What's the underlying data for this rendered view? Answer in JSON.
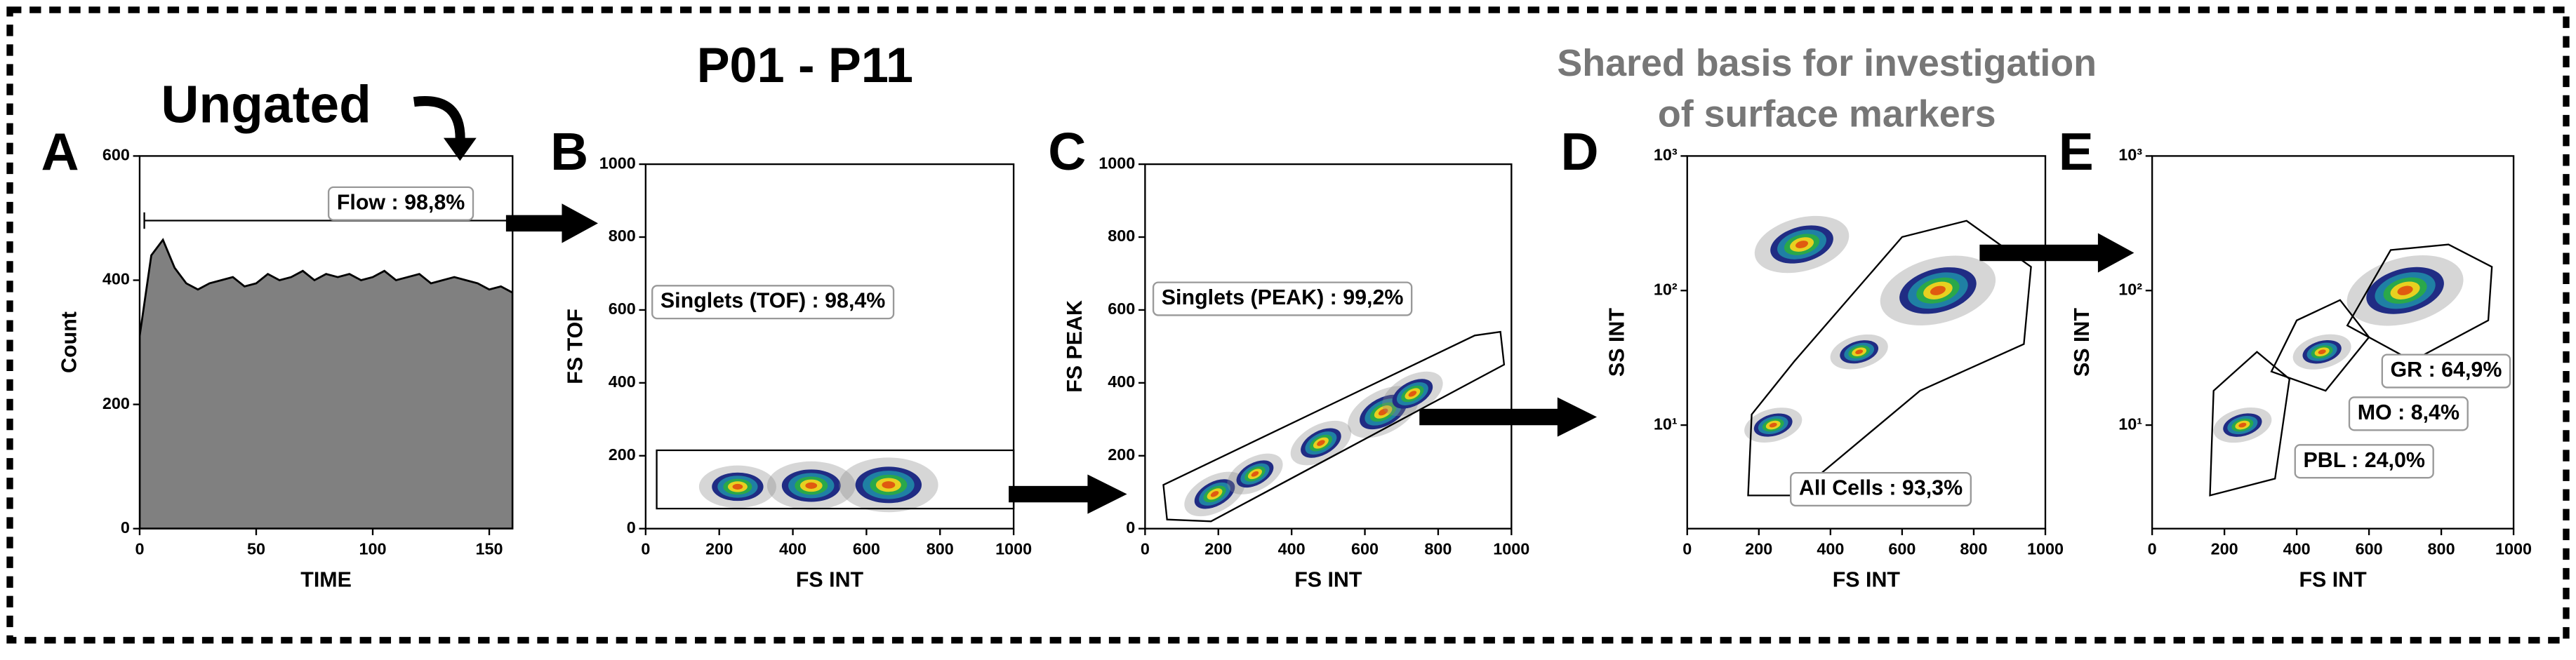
{
  "header": {
    "title": "P01 - P11",
    "ungated": "Ungated",
    "shared": [
      "Shared basis for investigation",
      "of surface markers"
    ]
  },
  "chart_data": [
    {
      "type": "area",
      "letter": "A",
      "xlabel": "TIME",
      "ylabel": "Count",
      "color": "#808080",
      "x": [
        0,
        5,
        10,
        15,
        20,
        25,
        30,
        35,
        40,
        45,
        50,
        55,
        60,
        65,
        70,
        75,
        80,
        85,
        90,
        95,
        100,
        105,
        110,
        115,
        120,
        125,
        130,
        135,
        140,
        145,
        150,
        155,
        160
      ],
      "values": [
        310,
        440,
        465,
        420,
        395,
        385,
        395,
        400,
        405,
        390,
        395,
        410,
        400,
        405,
        415,
        400,
        410,
        405,
        410,
        400,
        405,
        415,
        400,
        405,
        410,
        395,
        400,
        405,
        400,
        395,
        385,
        390,
        380
      ],
      "xlim": [
        0,
        160
      ],
      "xticks": [
        0,
        50,
        100,
        150
      ],
      "ylim": [
        0,
        600
      ],
      "yticks": [
        0,
        200,
        400,
        600
      ],
      "gates": [
        {
          "label": "Flow : 98,8%",
          "x": [
            2,
            160
          ],
          "y": [
            496,
            496
          ]
        }
      ]
    },
    {
      "type": "scatter",
      "letter": "B",
      "xlabel": "FS INT",
      "ylabel": "FS TOF",
      "x": [
        250,
        450,
        660
      ],
      "y": [
        115,
        118,
        120
      ],
      "sizes": [
        70,
        80,
        90
      ],
      "xlim": [
        0,
        1000
      ],
      "xticks": [
        0,
        200,
        400,
        600,
        800,
        1000
      ],
      "ylim": [
        0,
        1000
      ],
      "yticks": [
        0,
        200,
        400,
        600,
        800,
        1000
      ],
      "gates": [
        {
          "label": "Singlets (TOF) : 98,4%",
          "x": [
            30,
            1000,
            1000,
            30
          ],
          "y": [
            55,
            55,
            215,
            215
          ]
        }
      ]
    },
    {
      "type": "scatter",
      "letter": "C",
      "xlabel": "FS INT",
      "ylabel": "FS PEAK",
      "x": [
        190,
        300,
        480,
        650,
        730
      ],
      "y": [
        95,
        150,
        235,
        320,
        370
      ],
      "sizes": [
        60,
        55,
        60,
        70,
        60
      ],
      "xlim": [
        0,
        1000
      ],
      "xticks": [
        0,
        200,
        400,
        600,
        800,
        1000
      ],
      "ylim": [
        0,
        1000
      ],
      "yticks": [
        0,
        200,
        400,
        600,
        800,
        1000
      ],
      "gates": [
        {
          "label": "Singlets (PEAK) : 99,2%",
          "x": [
            50,
            60,
            180,
            980,
            970,
            900
          ],
          "y": [
            120,
            25,
            20,
            450,
            540,
            530
          ]
        }
      ]
    },
    {
      "type": "scatter",
      "letter": "D",
      "xlabel": "FS INT",
      "ylabel": "SS INT",
      "logy": true,
      "x": [
        240,
        480,
        700,
        320
      ],
      "y": [
        10,
        35,
        100,
        220
      ],
      "sizes": [
        55,
        55,
        110,
        90
      ],
      "xlim": [
        0,
        1000
      ],
      "xticks": [
        0,
        200,
        400,
        600,
        800,
        1000
      ],
      "ylim": [
        1.7,
        1000
      ],
      "yticks": [
        {
          "value": 10,
          "label": "10¹"
        },
        {
          "value": 100,
          "label": "10²"
        },
        {
          "value": 1000,
          "label": "10³"
        }
      ],
      "gates": [
        {
          "label": "All Cells : 93,3%",
          "x": [
            170,
            180,
            300,
            600,
            780,
            960,
            940,
            650,
            300
          ],
          "y": [
            3,
            12,
            30,
            250,
            330,
            150,
            40,
            18,
            3
          ]
        }
      ]
    },
    {
      "type": "scatter",
      "letter": "E",
      "xlabel": "FS INT",
      "ylabel": "SS INT",
      "logy": true,
      "x": [
        250,
        470,
        700
      ],
      "y": [
        10,
        35,
        100
      ],
      "sizes": [
        55,
        55,
        110
      ],
      "xlim": [
        0,
        1000
      ],
      "xticks": [
        0,
        200,
        400,
        600,
        800,
        1000
      ],
      "ylim": [
        1.7,
        1000
      ],
      "yticks": [
        {
          "value": 10,
          "label": "10¹"
        },
        {
          "value": 100,
          "label": "10²"
        },
        {
          "value": 1000,
          "label": "10³"
        }
      ],
      "gates": [
        {
          "label": "GR : 64,9%",
          "x": [
            540,
            660,
            820,
            940,
            930,
            720
          ],
          "y": [
            55,
            200,
            220,
            150,
            60,
            30
          ]
        },
        {
          "label": "MO : 8,4%",
          "x": [
            330,
            400,
            520,
            600,
            480
          ],
          "y": [
            25,
            60,
            85,
            45,
            18
          ]
        },
        {
          "label": "PBL : 24,0%",
          "x": [
            160,
            170,
            290,
            380,
            340
          ],
          "y": [
            3,
            18,
            35,
            22,
            4
          ]
        }
      ]
    }
  ]
}
